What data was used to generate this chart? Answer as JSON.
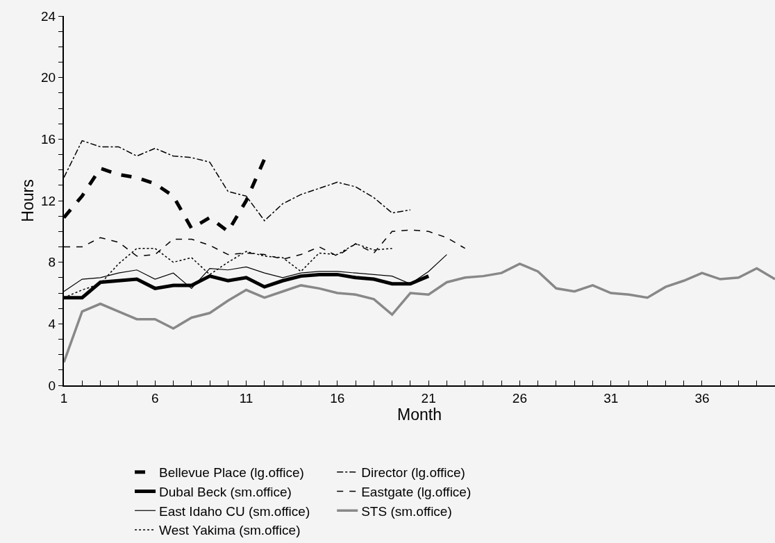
{
  "chart_data": {
    "type": "line",
    "xlabel": "Month",
    "ylabel": "Hours",
    "xlim": [
      1,
      40
    ],
    "ylim": [
      0,
      24
    ],
    "xticks": [
      1,
      {
        "value": 2,
        "label": null
      },
      {
        "value": 3,
        "label": null
      },
      {
        "value": 4,
        "label": null
      },
      {
        "value": 5,
        "label": null
      },
      6,
      {
        "value": 7,
        "label": null
      },
      {
        "value": 8,
        "label": null
      },
      {
        "value": 9,
        "label": null
      },
      {
        "value": 10,
        "label": null
      },
      11,
      {
        "value": 12,
        "label": null
      },
      {
        "value": 13,
        "label": null
      },
      {
        "value": 14,
        "label": null
      },
      {
        "value": 15,
        "label": null
      },
      16,
      {
        "value": 17,
        "label": null
      },
      {
        "value": 18,
        "label": null
      },
      {
        "value": 19,
        "label": null
      },
      {
        "value": 20,
        "label": null
      },
      21,
      {
        "value": 22,
        "label": null
      },
      {
        "value": 23,
        "label": null
      },
      {
        "value": 24,
        "label": null
      },
      {
        "value": 25,
        "label": null
      },
      26,
      {
        "value": 27,
        "label": null
      },
      {
        "value": 28,
        "label": null
      },
      {
        "value": 29,
        "label": null
      },
      {
        "value": 30,
        "label": null
      },
      31,
      {
        "value": 32,
        "label": null
      },
      {
        "value": 33,
        "label": null
      },
      {
        "value": 34,
        "label": null
      },
      {
        "value": 35,
        "label": null
      },
      36,
      {
        "value": 37,
        "label": null
      },
      {
        "value": 38,
        "label": null
      },
      {
        "value": 39,
        "label": null
      }
    ],
    "yticks": [
      0,
      {
        "value": 1,
        "label": null
      },
      {
        "value": 2,
        "label": null
      },
      {
        "value": 3,
        "label": null
      },
      4,
      {
        "value": 5,
        "label": null
      },
      {
        "value": 6,
        "label": null
      },
      {
        "value": 7,
        "label": null
      },
      8,
      {
        "value": 9,
        "label": null
      },
      {
        "value": 10,
        "label": null
      },
      {
        "value": 11,
        "label": null
      },
      12,
      {
        "value": 13,
        "label": null
      },
      {
        "value": 14,
        "label": null
      },
      {
        "value": 15,
        "label": null
      },
      16,
      {
        "value": 17,
        "label": null
      },
      {
        "value": 18,
        "label": null
      },
      {
        "value": 19,
        "label": null
      },
      20,
      {
        "value": 21,
        "label": null
      },
      {
        "value": 22,
        "label": null
      },
      {
        "value": 23,
        "label": null
      },
      24
    ],
    "grid": false,
    "legend": "bottom",
    "marker": "none",
    "series": [
      {
        "name": "Bellevue Place (lg.office)",
        "color": "#000000",
        "line_style": "dashed",
        "x": [
          1,
          2,
          3,
          4,
          5,
          6,
          7,
          8,
          9,
          10,
          11,
          12
        ],
        "values": [
          10.9,
          12.3,
          14.1,
          13.7,
          13.5,
          13.1,
          12.3,
          10.2,
          10.9,
          10.0,
          12.0,
          14.7
        ]
      },
      {
        "name": "Director (lg.office)",
        "color": "#000000",
        "line_style": "dashdot",
        "x": [
          1,
          2,
          3,
          4,
          5,
          6,
          7,
          8,
          9,
          10,
          11,
          12,
          13,
          14,
          15,
          16,
          17,
          18,
          19,
          20
        ],
        "values": [
          13.5,
          15.9,
          15.5,
          15.5,
          14.9,
          15.4,
          14.9,
          14.8,
          14.5,
          12.6,
          12.3,
          10.7,
          11.8,
          12.4,
          12.8,
          13.2,
          12.9,
          12.2,
          11.2,
          11.4
        ]
      },
      {
        "name": "Dubal Beck (sm.office)",
        "color": "#000000",
        "line_style": "solid",
        "x": [
          1,
          2,
          3,
          4,
          5,
          6,
          7,
          8,
          9,
          10,
          11,
          12,
          13,
          14,
          15,
          16,
          17,
          18,
          19,
          20,
          21
        ],
        "values": [
          5.7,
          5.7,
          6.7,
          6.8,
          6.9,
          6.3,
          6.5,
          6.5,
          7.1,
          6.8,
          7.0,
          6.4,
          6.8,
          7.1,
          7.2,
          7.2,
          7.0,
          6.9,
          6.6,
          6.6,
          7.1
        ]
      },
      {
        "name": "Eastgate (lg.office)",
        "color": "#000000",
        "line_style": "dashed",
        "x": [
          1,
          2,
          3,
          4,
          5,
          6,
          7,
          8,
          9,
          10,
          11,
          12,
          13,
          14,
          15,
          16,
          17,
          18,
          19,
          20,
          21,
          22,
          23
        ],
        "values": [
          9.0,
          9.0,
          9.6,
          9.3,
          8.4,
          8.5,
          9.5,
          9.5,
          9.1,
          8.5,
          8.6,
          8.5,
          8.2,
          8.5,
          9.0,
          8.4,
          9.2,
          8.6,
          10.0,
          10.1,
          10.0,
          9.6,
          8.9
        ]
      },
      {
        "name": "East Idaho CU (sm.office)",
        "color": "#000000",
        "line_style": "solid",
        "x": [
          1,
          2,
          3,
          4,
          5,
          6,
          7,
          8,
          9,
          10,
          11,
          12,
          13,
          14,
          15,
          16,
          17,
          18,
          19,
          20,
          21,
          22
        ],
        "values": [
          6.1,
          6.9,
          7.0,
          7.3,
          7.5,
          6.9,
          7.3,
          6.3,
          7.6,
          7.5,
          7.7,
          7.3,
          7.0,
          7.3,
          7.4,
          7.4,
          7.3,
          7.2,
          7.1,
          6.6,
          7.4,
          8.5
        ]
      },
      {
        "name": "STS (sm.office)",
        "color": "#888888",
        "line_style": "solid",
        "x": [
          1,
          2,
          3,
          4,
          5,
          6,
          7,
          8,
          9,
          10,
          11,
          12,
          13,
          14,
          15,
          16,
          17,
          18,
          19,
          20,
          21,
          22,
          23,
          24,
          25,
          26,
          27,
          28,
          29,
          30,
          31,
          32,
          33,
          34,
          35,
          36,
          37,
          38,
          39,
          40
        ],
        "values": [
          1.5,
          4.8,
          5.3,
          4.8,
          4.3,
          4.3,
          3.7,
          4.4,
          4.7,
          5.5,
          6.2,
          5.7,
          6.1,
          6.5,
          6.3,
          6.0,
          5.9,
          5.6,
          4.6,
          6.0,
          5.9,
          6.7,
          7.0,
          7.1,
          7.3,
          7.9,
          7.4,
          6.3,
          6.1,
          6.5,
          6.0,
          5.9,
          5.7,
          6.4,
          6.8,
          7.3,
          6.9,
          7.0,
          7.6,
          6.9
        ]
      },
      {
        "name": "West Yakima (sm.office)",
        "color": "#000000",
        "line_style": "dotted",
        "x": [
          1,
          2,
          3,
          4,
          5,
          6,
          7,
          8,
          9,
          10,
          11,
          12,
          13,
          14,
          15,
          16,
          17,
          18,
          19
        ],
        "values": [
          5.7,
          6.2,
          6.6,
          7.9,
          8.9,
          8.9,
          8.0,
          8.3,
          7.2,
          8.0,
          8.7,
          8.4,
          8.3,
          7.4,
          8.6,
          8.5,
          9.2,
          8.8,
          8.9
        ]
      }
    ]
  }
}
